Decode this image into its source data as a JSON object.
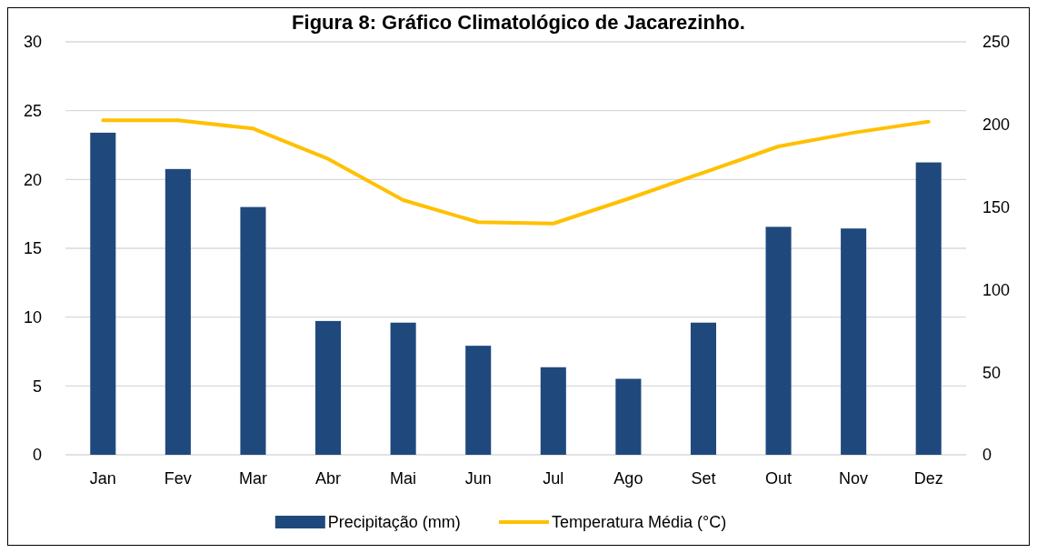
{
  "chart_data": {
    "type": "bar",
    "title": "Figura 8: Gráfico Climatológico de Jacarezinho.",
    "categories": [
      "Jan",
      "Fev",
      "Mar",
      "Abr",
      "Mai",
      "Jun",
      "Jul",
      "Ago",
      "Set",
      "Out",
      "Nov",
      "Dez"
    ],
    "series": [
      {
        "name": "Precipitação (mm)",
        "axis": "y2",
        "color": "#1f497d",
        "values": [
          195,
          173,
          150,
          81,
          80,
          66,
          53,
          46,
          80,
          138,
          137,
          177
        ]
      },
      {
        "name": "Temperatura Média (°C)",
        "type": "line",
        "color": "#ffc000",
        "values": [
          24.3,
          24.3,
          23.7,
          21.5,
          18.5,
          16.9,
          16.8,
          18.6,
          20.5,
          22.4,
          23.4,
          24.2
        ]
      }
    ],
    "ylim": [
      0,
      30
    ],
    "yticks": [
      0,
      5,
      10,
      15,
      20,
      25,
      30
    ],
    "y2lim": [
      0,
      250
    ],
    "y2ticks": [
      0,
      50,
      100,
      150,
      200,
      250
    ],
    "grid": "y",
    "legend": "bottom",
    "marker": "none",
    "line_style": "solid"
  }
}
